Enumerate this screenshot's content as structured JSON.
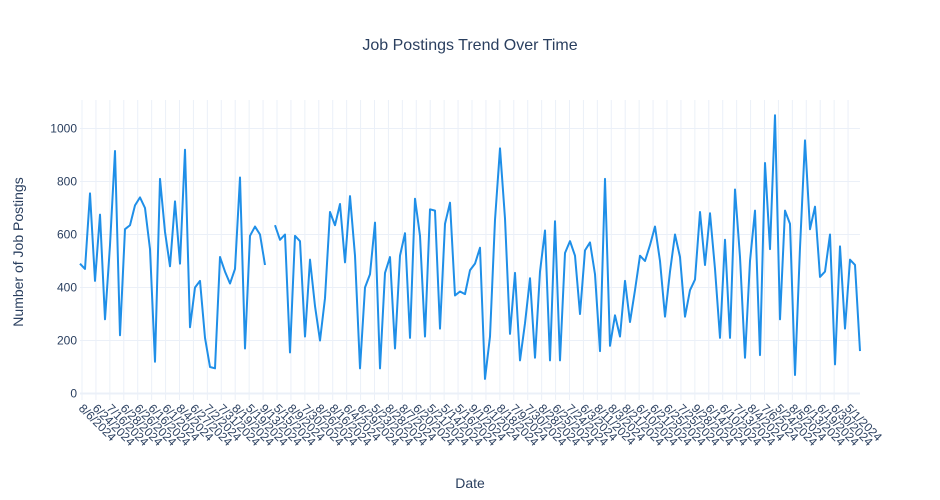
{
  "chart_data": {
    "type": "line",
    "title": "Job Postings Trend Over Time",
    "xlabel": "Date",
    "ylabel": "Number of Job Postings",
    "ylim": [
      -25,
      1110
    ],
    "yticks": [
      0,
      200,
      400,
      600,
      800,
      1000
    ],
    "grid": true,
    "line_color": "#1f8fe8",
    "xtick_labels": [
      "8/6/2024",
      "6/24/2024",
      "7/16/2024",
      "6/28/2024",
      "6/26/2024",
      "6/16/2024",
      "6/1/2024",
      "8/4/2024",
      "6/27/2024",
      "7/2/2024",
      "7/31/2024",
      "8/19/2024",
      "5/19/2024",
      "9/13/2024",
      "5/15/2024",
      "8/9/2024",
      "7/30/2024",
      "8/26/2024",
      "8/16/2024",
      "6/4/2024",
      "6/29/2024",
      "5/23/2024",
      "8/28/2024",
      "8/7/2024",
      "6/20/2024",
      "5/21/2024",
      "5/14/2024",
      "5/16/2024",
      "9/1/2024",
      "6/1/2024",
      "8/18/2024",
      "7/9/2024",
      "7/30/2024",
      "8/28/2024",
      "6/25/2024",
      "7/24/2024",
      "6/3/2024",
      "8/11/2024",
      "8/3/2024",
      "8/21/2024",
      "6/10/2024",
      "6/21/2024",
      "6/25/2024",
      "7/25/2024",
      "9/28/2024",
      "6/14/2024",
      "6/10/2024",
      "7/13/2024",
      "8/4/2024",
      "7/6/2024",
      "5/24/2024",
      "8/5/2024",
      "6/13/2024",
      "6/19/2024",
      "6/30/2024",
      "5/1/2024"
    ],
    "values": [
      490,
      470,
      755,
      425,
      675,
      280,
      560,
      915,
      220,
      620,
      635,
      710,
      740,
      700,
      545,
      120,
      810,
      610,
      480,
      725,
      490,
      920,
      250,
      400,
      425,
      210,
      100,
      95,
      515,
      460,
      415,
      470,
      815,
      170,
      595,
      630,
      600,
      485,
      null,
      635,
      580,
      600,
      155,
      595,
      575,
      215,
      505,
      330,
      200,
      360,
      685,
      635,
      715,
      495,
      745,
      520,
      95,
      400,
      450,
      645,
      95,
      455,
      515,
      170,
      520,
      605,
      210,
      735,
      595,
      215,
      695,
      690,
      245,
      640,
      720,
      370,
      385,
      375,
      465,
      490,
      550,
      55,
      215,
      655,
      925,
      660,
      225,
      455,
      125,
      265,
      435,
      135,
      460,
      615,
      125,
      650,
      125,
      530,
      575,
      520,
      300,
      540,
      570,
      450,
      160,
      810,
      180,
      295,
      215,
      425,
      270,
      390,
      520,
      500,
      560,
      630,
      500,
      290,
      460,
      600,
      515,
      290,
      390,
      430,
      685,
      485,
      680,
      470,
      210,
      580,
      210,
      770,
      515,
      135,
      500,
      690,
      145,
      870,
      545,
      1050,
      280,
      690,
      640,
      70,
      550,
      955,
      620,
      705,
      440,
      460,
      600,
      110,
      555,
      245,
      505,
      485,
      160
    ]
  }
}
